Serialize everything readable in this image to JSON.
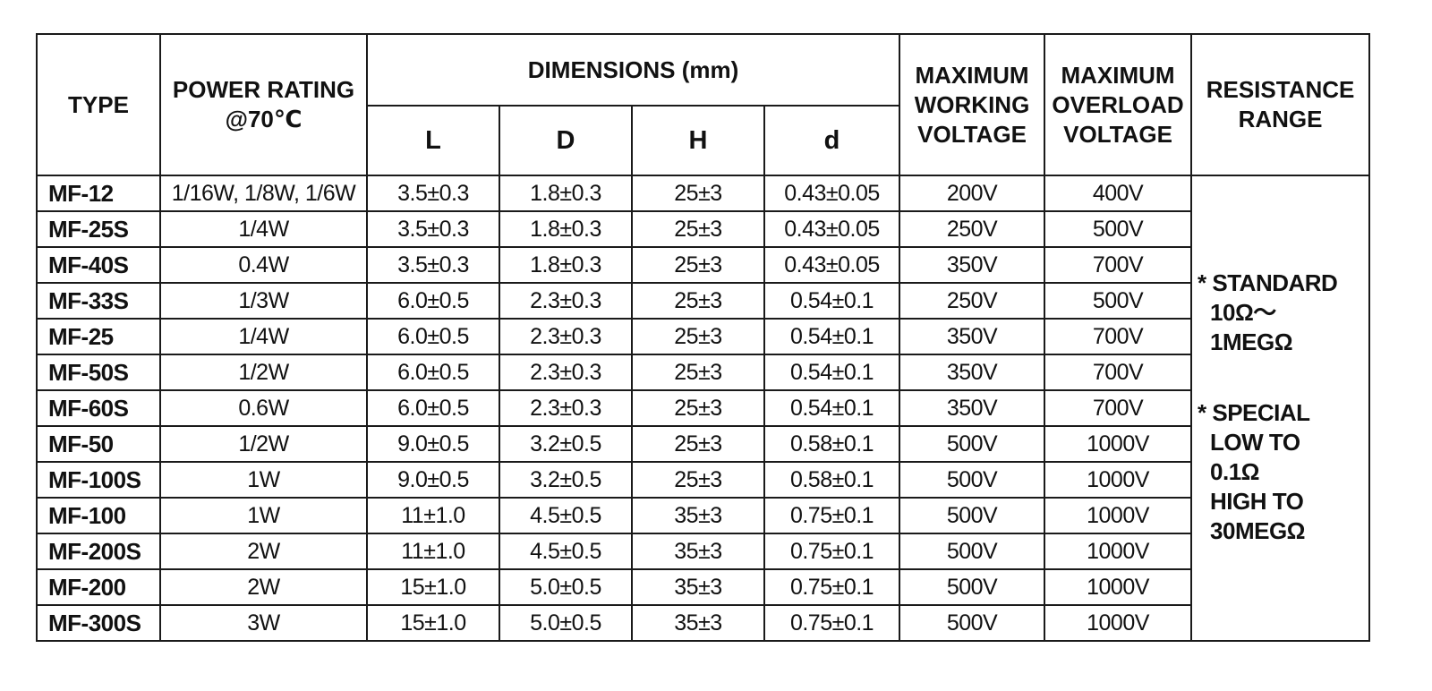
{
  "header": {
    "type": "TYPE",
    "power_rating": [
      "POWER RATING",
      "@70℃"
    ],
    "dimensions": "DIMENSIONS (mm)",
    "dim_L": "L",
    "dim_D": "D",
    "dim_H": "H",
    "dim_d": "d",
    "max_working_voltage": [
      "MAXIMUM",
      "WORKING",
      "VOLTAGE"
    ],
    "max_overload_voltage": [
      "MAXIMUM",
      "OVERLOAD",
      "VOLTAGE"
    ],
    "resistance_range": [
      "RESISTANCE",
      "RANGE"
    ]
  },
  "rows": [
    {
      "type": "MF-12",
      "power": "1/16W, 1/8W, 1/6W",
      "L": "3.5±0.3",
      "D": "1.8±0.3",
      "H": "25±3",
      "d": "0.43±0.05",
      "working": "200V",
      "overload": "400V"
    },
    {
      "type": "MF-25S",
      "power": "1/4W",
      "L": "3.5±0.3",
      "D": "1.8±0.3",
      "H": "25±3",
      "d": "0.43±0.05",
      "working": "250V",
      "overload": "500V"
    },
    {
      "type": "MF-40S",
      "power": "0.4W",
      "L": "3.5±0.3",
      "D": "1.8±0.3",
      "H": "25±3",
      "d": "0.43±0.05",
      "working": "350V",
      "overload": "700V"
    },
    {
      "type": "MF-33S",
      "power": "1/3W",
      "L": "6.0±0.5",
      "D": "2.3±0.3",
      "H": "25±3",
      "d": "0.54±0.1",
      "working": "250V",
      "overload": "500V"
    },
    {
      "type": "MF-25",
      "power": "1/4W",
      "L": "6.0±0.5",
      "D": "2.3±0.3",
      "H": "25±3",
      "d": "0.54±0.1",
      "working": "350V",
      "overload": "700V"
    },
    {
      "type": "MF-50S",
      "power": "1/2W",
      "L": "6.0±0.5",
      "D": "2.3±0.3",
      "H": "25±3",
      "d": "0.54±0.1",
      "working": "350V",
      "overload": "700V"
    },
    {
      "type": "MF-60S",
      "power": "0.6W",
      "L": "6.0±0.5",
      "D": "2.3±0.3",
      "H": "25±3",
      "d": "0.54±0.1",
      "working": "350V",
      "overload": "700V"
    },
    {
      "type": "MF-50",
      "power": "1/2W",
      "L": "9.0±0.5",
      "D": "3.2±0.5",
      "H": "25±3",
      "d": "0.58±0.1",
      "working": "500V",
      "overload": "1000V"
    },
    {
      "type": "MF-100S",
      "power": "1W",
      "L": "9.0±0.5",
      "D": "3.2±0.5",
      "H": "25±3",
      "d": "0.58±0.1",
      "working": "500V",
      "overload": "1000V"
    },
    {
      "type": "MF-100",
      "power": "1W",
      "L": "11±1.0",
      "D": "4.5±0.5",
      "H": "35±3",
      "d": "0.75±0.1",
      "working": "500V",
      "overload": "1000V"
    },
    {
      "type": "MF-200S",
      "power": "2W",
      "L": "11±1.0",
      "D": "4.5±0.5",
      "H": "35±3",
      "d": "0.75±0.1",
      "working": "500V",
      "overload": "1000V"
    },
    {
      "type": "MF-200",
      "power": "2W",
      "L": "15±1.0",
      "D": "5.0±0.5",
      "H": "35±3",
      "d": "0.75±0.1",
      "working": "500V",
      "overload": "1000V"
    },
    {
      "type": "MF-300S",
      "power": "3W",
      "L": "15±1.0",
      "D": "5.0±0.5",
      "H": "35±3",
      "d": "0.75±0.1",
      "working": "500V",
      "overload": "1000V"
    }
  ],
  "resistance_range_note": {
    "standard": [
      "* STANDARD",
      "10Ω～",
      "1MEGΩ"
    ],
    "special": [
      "* SPECIAL",
      "LOW TO",
      "0.1Ω",
      "HIGH TO",
      "30MEGΩ"
    ]
  }
}
